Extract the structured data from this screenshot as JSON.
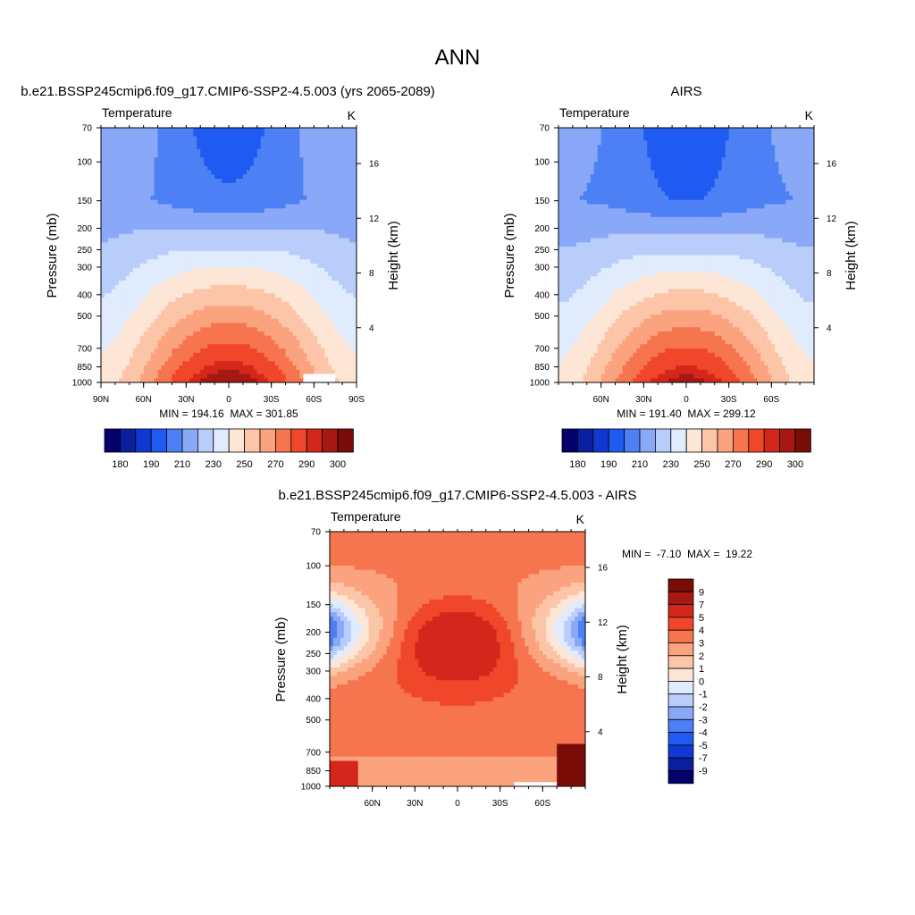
{
  "page": {
    "title": "ANN"
  },
  "palette": {
    "absolute": [
      "#03006e",
      "#0a1f9e",
      "#1039d4",
      "#1f5bf2",
      "#4e80f5",
      "#89a8f8",
      "#b9cdfb",
      "#e0ebfd",
      "#fde6d5",
      "#fcc5a8",
      "#fba27e",
      "#f6744e",
      "#f0472a",
      "#d4271c",
      "#a61812",
      "#7a0c08"
    ],
    "diff": [
      "#03006e",
      "#0a1f9e",
      "#1039d4",
      "#1f5bf2",
      "#4e80f5",
      "#89a8f8",
      "#b9cdfb",
      "#e0ebfd",
      "#fde6d5",
      "#fcc5a8",
      "#fba27e",
      "#f6744e",
      "#f0472a",
      "#d4271c",
      "#a61812",
      "#7a0c08"
    ]
  },
  "chart_data": [
    {
      "type": "heatmap",
      "panel": "model",
      "title": "b.e21.BSSP245cmip6.f09_g17.CMIP6-SSP2-4.5.003 (yrs 2065-2089)",
      "left_label": "Temperature",
      "right_label": "K",
      "ylabel": "Pressure (mb)",
      "ylabel_right": "Height (km)",
      "x_ticks": [
        "90N",
        "60N",
        "30N",
        "0",
        "30S",
        "60S",
        "90S"
      ],
      "x_tick_values": [
        90,
        60,
        30,
        0,
        -30,
        -60,
        -90
      ],
      "xlim": [
        90,
        -90
      ],
      "y_ticks": [
        70,
        100,
        150,
        200,
        250,
        300,
        400,
        500,
        700,
        850,
        1000
      ],
      "ylim": [
        1000,
        70
      ],
      "log_scale_y": true,
      "height_ticks_km": [
        4,
        8,
        12,
        16
      ],
      "stats": "MIN = 194.16  MAX = 301.85",
      "min": 194.16,
      "max": 301.85,
      "colorbar": {
        "orientation": "horizontal",
        "levels": [
          180,
          185,
          190,
          200,
          210,
          220,
          230,
          240,
          250,
          260,
          270,
          280,
          290,
          295,
          300
        ],
        "tick_labels": [
          "180",
          "190",
          "210",
          "230",
          "250",
          "270",
          "290",
          "300"
        ]
      },
      "field": {
        "surface_max": 301.85,
        "tropopause_min": 194.16
      }
    },
    {
      "type": "heatmap",
      "panel": "obs",
      "title": "AIRS",
      "left_label": "Temperature",
      "right_label": "K",
      "ylabel": "Pressure (mb)",
      "ylabel_right": "Height (km)",
      "x_ticks": [
        "60N",
        "30N",
        "0",
        "30S",
        "60S"
      ],
      "x_tick_values": [
        60,
        30,
        0,
        -30,
        -60
      ],
      "xlim": [
        90,
        -90
      ],
      "y_ticks": [
        70,
        100,
        150,
        200,
        250,
        300,
        400,
        500,
        700,
        850,
        1000
      ],
      "ylim": [
        1000,
        70
      ],
      "log_scale_y": true,
      "height_ticks_km": [
        4,
        8,
        12,
        16
      ],
      "stats": "MIN = 191.40  MAX = 299.12",
      "min": 191.4,
      "max": 299.12,
      "colorbar": {
        "orientation": "horizontal",
        "levels": [
          180,
          185,
          190,
          200,
          210,
          220,
          230,
          240,
          250,
          260,
          270,
          280,
          290,
          295,
          300
        ],
        "tick_labels": [
          "180",
          "190",
          "210",
          "230",
          "250",
          "270",
          "290",
          "300"
        ]
      },
      "field": {
        "surface_max": 299.12,
        "tropopause_min": 191.4
      }
    },
    {
      "type": "heatmap",
      "panel": "difference",
      "title": "b.e21.BSSP245cmip6.f09_g17.CMIP6-SSP2-4.5.003 - AIRS",
      "left_label": "Temperature",
      "right_label": "K",
      "ylabel": "Pressure (mb)",
      "ylabel_right": "Height (km)",
      "x_ticks": [
        "60N",
        "30N",
        "0",
        "30S",
        "60S"
      ],
      "x_tick_values": [
        60,
        30,
        0,
        -30,
        -60
      ],
      "xlim": [
        90,
        -90
      ],
      "y_ticks": [
        70,
        100,
        150,
        200,
        250,
        300,
        400,
        500,
        700,
        850,
        1000
      ],
      "ylim": [
        1000,
        70
      ],
      "log_scale_y": true,
      "height_ticks_km": [
        4,
        8,
        12,
        16
      ],
      "stats": "MIN =  -7.10  MAX =  19.22",
      "min": -7.1,
      "max": 19.22,
      "colorbar": {
        "orientation": "vertical",
        "levels": [
          -9,
          -7,
          -5,
          -4,
          -3,
          -2,
          -1,
          0,
          1,
          2,
          3,
          4,
          5,
          7,
          9
        ],
        "tick_labels": [
          "9",
          "7",
          "5",
          "4",
          "3",
          "2",
          "1",
          "0",
          "-1",
          "-2",
          "-3",
          "-4",
          "-5",
          "-7",
          "-9"
        ]
      }
    }
  ]
}
